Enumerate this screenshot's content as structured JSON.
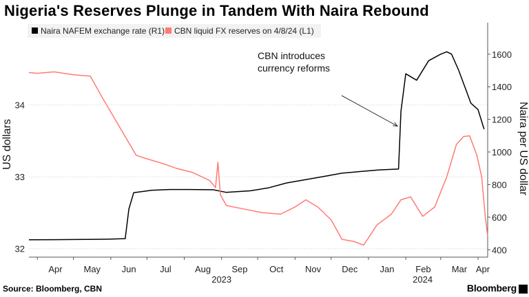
{
  "title": "Nigeria's Reserves Plunge in Tandem With Naira Rebound",
  "footer": {
    "source": "Source: Bloomberg, CBN",
    "brand": "Bloomberg"
  },
  "chart_data": {
    "type": "line",
    "left_axis": {
      "label": "US dollars",
      "ylim": [
        31.94,
        35.0
      ],
      "ticks": [
        32,
        33,
        34
      ]
    },
    "right_axis": {
      "label": "Naira per US dollar",
      "ylim": [
        380,
        1730
      ],
      "ticks": [
        400,
        600,
        800,
        1000,
        1200,
        1400,
        1600
      ]
    },
    "x_axis": {
      "start": "2023-03-25",
      "end": "2024-04-09",
      "ticks": [
        {
          "date": "2023-04-01",
          "label": "Apr"
        },
        {
          "date": "2023-05-01",
          "label": "May"
        },
        {
          "date": "2023-06-01",
          "label": "Jun"
        },
        {
          "date": "2023-07-01",
          "label": "Jul"
        },
        {
          "date": "2023-08-01",
          "label": "Aug"
        },
        {
          "date": "2023-09-01",
          "label": "Sep"
        },
        {
          "date": "2023-10-01",
          "label": "Oct"
        },
        {
          "date": "2023-11-01",
          "label": "Nov"
        },
        {
          "date": "2023-12-01",
          "label": "Dec"
        },
        {
          "date": "2024-01-01",
          "label": "Jan"
        },
        {
          "date": "2024-02-01",
          "label": "Feb"
        },
        {
          "date": "2024-03-01",
          "label": "Mar"
        },
        {
          "date": "2024-04-01",
          "label": "Apr"
        }
      ],
      "years": [
        {
          "label": "2023",
          "date": "2023-09-01"
        },
        {
          "label": "2024",
          "date": "2024-02-15"
        }
      ]
    },
    "legend_position": "top-left",
    "grid": "horizontal",
    "annotation": {
      "lines": [
        "CBN introduces",
        "currency reforms"
      ],
      "date": "2024-01-28",
      "value": 1175
    },
    "series": [
      {
        "name": "Naira NAFEM exchange rate (R1)",
        "axis": "right",
        "color": "#000000",
        "points": [
          [
            "2023-03-25",
            461
          ],
          [
            "2023-04-15",
            462
          ],
          [
            "2023-05-10",
            463
          ],
          [
            "2023-05-30",
            465
          ],
          [
            "2023-06-13",
            468
          ],
          [
            "2023-06-16",
            650
          ],
          [
            "2023-06-20",
            750
          ],
          [
            "2023-07-05",
            765
          ],
          [
            "2023-07-20",
            770
          ],
          [
            "2023-08-05",
            770
          ],
          [
            "2023-08-25",
            768
          ],
          [
            "2023-09-05",
            752
          ],
          [
            "2023-09-25",
            762
          ],
          [
            "2023-10-10",
            780
          ],
          [
            "2023-10-25",
            810
          ],
          [
            "2023-11-10",
            830
          ],
          [
            "2023-11-25",
            850
          ],
          [
            "2023-12-10",
            870
          ],
          [
            "2023-12-25",
            880
          ],
          [
            "2024-01-10",
            890
          ],
          [
            "2024-01-26",
            895
          ],
          [
            "2024-01-28",
            1250
          ],
          [
            "2024-02-01",
            1480
          ],
          [
            "2024-02-10",
            1440
          ],
          [
            "2024-02-20",
            1560
          ],
          [
            "2024-03-01",
            1600
          ],
          [
            "2024-03-06",
            1615
          ],
          [
            "2024-03-10",
            1600
          ],
          [
            "2024-03-16",
            1500
          ],
          [
            "2024-03-21",
            1400
          ],
          [
            "2024-03-26",
            1300
          ],
          [
            "2024-04-01",
            1260
          ],
          [
            "2024-04-06",
            1140
          ]
        ]
      },
      {
        "name": "CBN liquid FX reserves on 4/8/24 (L1)",
        "axis": "left",
        "color": "#ff7a73",
        "points": [
          [
            "2023-03-25",
            34.45
          ],
          [
            "2023-04-01",
            34.44
          ],
          [
            "2023-04-15",
            34.46
          ],
          [
            "2023-05-01",
            34.42
          ],
          [
            "2023-05-15",
            34.4
          ],
          [
            "2023-05-25",
            34.1
          ],
          [
            "2023-06-08",
            33.7
          ],
          [
            "2023-06-22",
            33.3
          ],
          [
            "2023-07-01",
            33.25
          ],
          [
            "2023-07-15",
            33.18
          ],
          [
            "2023-07-25",
            33.12
          ],
          [
            "2023-08-08",
            33.06
          ],
          [
            "2023-08-22",
            32.95
          ],
          [
            "2023-08-27",
            32.85
          ],
          [
            "2023-08-29",
            33.2
          ],
          [
            "2023-08-31",
            32.75
          ],
          [
            "2023-09-05",
            32.6
          ],
          [
            "2023-09-20",
            32.55
          ],
          [
            "2023-10-05",
            32.5
          ],
          [
            "2023-10-20",
            32.48
          ],
          [
            "2023-11-01",
            32.58
          ],
          [
            "2023-11-10",
            32.68
          ],
          [
            "2023-11-20",
            32.58
          ],
          [
            "2023-12-01",
            32.4
          ],
          [
            "2023-12-10",
            32.13
          ],
          [
            "2023-12-20",
            32.1
          ],
          [
            "2023-12-28",
            32.05
          ],
          [
            "2024-01-08",
            32.33
          ],
          [
            "2024-01-20",
            32.48
          ],
          [
            "2024-01-28",
            32.68
          ],
          [
            "2024-02-05",
            32.72
          ],
          [
            "2024-02-15",
            32.45
          ],
          [
            "2024-02-25",
            32.58
          ],
          [
            "2024-03-06",
            33.0
          ],
          [
            "2024-03-14",
            33.45
          ],
          [
            "2024-03-20",
            33.56
          ],
          [
            "2024-03-25",
            33.57
          ],
          [
            "2024-03-31",
            33.3
          ],
          [
            "2024-04-04",
            33.0
          ],
          [
            "2024-04-07",
            32.45
          ],
          [
            "2024-04-09",
            32.17
          ]
        ]
      }
    ]
  }
}
